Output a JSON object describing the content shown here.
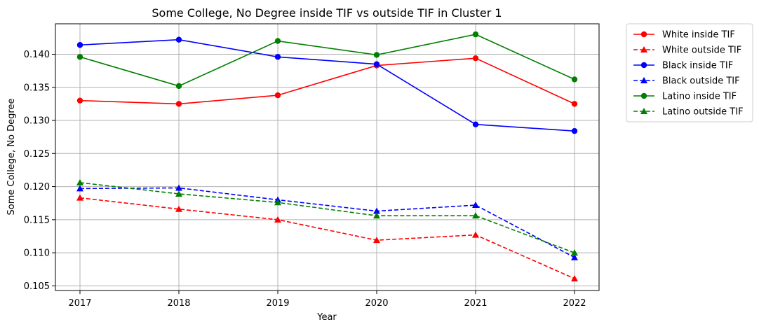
{
  "chart_data": {
    "type": "line",
    "title": "Some College, No Degree inside TIF vs outside TIF in Cluster 1",
    "xlabel": "Year",
    "ylabel": "Some College, No Degree",
    "x": [
      2017,
      2018,
      2019,
      2020,
      2021,
      2022
    ],
    "x_tick_labels": [
      "2017",
      "2018",
      "2019",
      "2020",
      "2021",
      "2022"
    ],
    "ylim": [
      0.1043,
      0.1446
    ],
    "y_ticks": [
      0.105,
      0.11,
      0.115,
      0.12,
      0.125,
      0.13,
      0.135,
      0.14
    ],
    "y_tick_labels": [
      "0.105",
      "0.110",
      "0.115",
      "0.120",
      "0.125",
      "0.130",
      "0.135",
      "0.140"
    ],
    "grid": true,
    "legend_position": "outside-right-top",
    "series": [
      {
        "name": "White inside TIF",
        "color": "#ff0000",
        "style": "solid",
        "marker": "circle",
        "values": [
          0.133,
          0.1325,
          0.1338,
          0.1383,
          0.1394,
          0.1325
        ]
      },
      {
        "name": "White outside TIF",
        "color": "#ff0000",
        "style": "dashed",
        "marker": "triangle",
        "values": [
          0.1183,
          0.1166,
          0.115,
          0.1119,
          0.1127,
          0.1061
        ]
      },
      {
        "name": "Black inside TIF",
        "color": "#0000ff",
        "style": "solid",
        "marker": "circle",
        "values": [
          0.1414,
          0.1422,
          0.1396,
          0.1385,
          0.1294,
          0.1284
        ]
      },
      {
        "name": "Black outside TIF",
        "color": "#0000ff",
        "style": "dashed",
        "marker": "triangle",
        "values": [
          0.1197,
          0.1198,
          0.118,
          0.1163,
          0.1172,
          0.1093
        ]
      },
      {
        "name": "Latino inside TIF",
        "color": "#008000",
        "style": "solid",
        "marker": "circle",
        "values": [
          0.1396,
          0.1352,
          0.142,
          0.1399,
          0.143,
          0.1362
        ]
      },
      {
        "name": "Latino outside TIF",
        "color": "#008000",
        "style": "dashed",
        "marker": "triangle",
        "values": [
          0.1206,
          0.1189,
          0.1176,
          0.1156,
          0.1156,
          0.11
        ]
      }
    ]
  }
}
